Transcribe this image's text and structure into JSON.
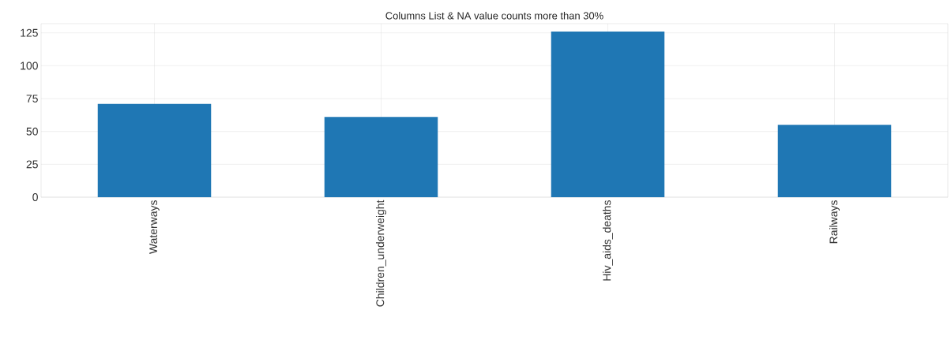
{
  "chart_data": {
    "type": "bar",
    "title": "Columns List & NA value counts more than 30%",
    "categories": [
      "Waterways",
      "Children_underweight",
      "Hiv_aids_deaths",
      "Railways"
    ],
    "values": [
      71,
      61,
      126,
      55
    ],
    "color": "#1f77b4",
    "ylim": [
      0,
      132
    ],
    "yticks": [
      0,
      25,
      50,
      75,
      100,
      125
    ],
    "grid": true
  }
}
